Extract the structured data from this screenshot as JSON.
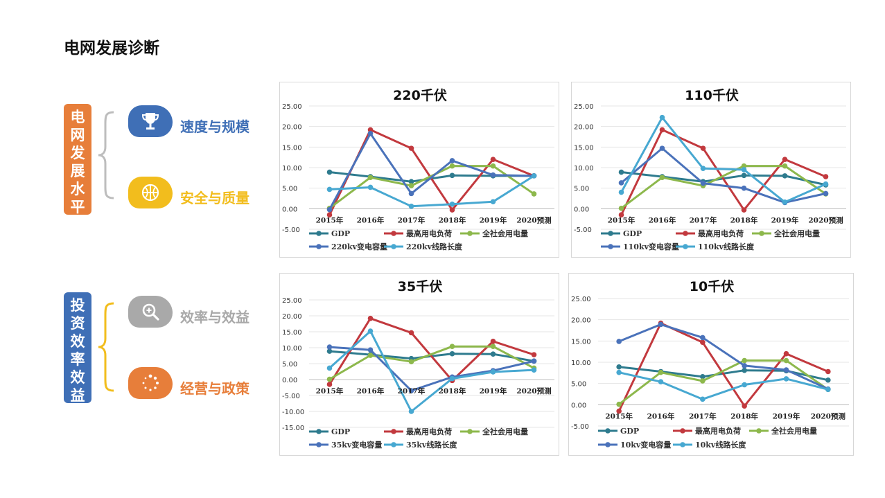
{
  "page": {
    "title": "电网发展诊断"
  },
  "sections": [
    {
      "label": "电网发展水平",
      "color": "#E77E3A",
      "items": [
        {
          "label": "速度与规模",
          "color": "#3F6FB6",
          "icon": "trophy-icon"
        },
        {
          "label": "安全与质量",
          "color": "#F2BD1D",
          "icon": "basketball-icon"
        }
      ]
    },
    {
      "label": "投资效率效益",
      "color": "#3F6FB6",
      "items": [
        {
          "label": "效率与效益",
          "color": "#A9A9A9",
          "icon": "magnifier-icon"
        },
        {
          "label": "经营与政策",
          "color": "#E77E3A",
          "icon": "loading-icon"
        }
      ]
    }
  ],
  "chart_data": [
    {
      "type": "line",
      "title": "220千伏",
      "categories": [
        "2015年",
        "2016年",
        "2017年",
        "2018年",
        "2019年",
        "2020预测"
      ],
      "ylim": [
        -5,
        25
      ],
      "yticks": [
        "25.00",
        "20.00",
        "15.00",
        "10.00",
        "5.00",
        "0.00",
        "-5.00"
      ],
      "series": [
        {
          "name": "GDP",
          "color": "#2E7B8E",
          "values": [
            8.9,
            7.8,
            6.6,
            8.1,
            8.0,
            8.0
          ]
        },
        {
          "name": "最高用电负荷",
          "color": "#C2393E",
          "values": [
            -1.5,
            19.2,
            14.7,
            -0.3,
            12.0,
            8.0
          ]
        },
        {
          "name": "全社会用电量",
          "color": "#8DB84C",
          "values": [
            0.1,
            7.6,
            5.6,
            10.4,
            10.4,
            3.6
          ]
        },
        {
          "name": "220kv变电容量",
          "color": "#4A72BA",
          "values": [
            -0.2,
            18.3,
            3.7,
            11.7,
            8.2,
            8.0
          ]
        },
        {
          "name": "220kv线路长度",
          "color": "#47A8D1",
          "values": [
            4.7,
            5.2,
            0.6,
            1.1,
            1.7,
            8.0
          ]
        }
      ]
    },
    {
      "type": "line",
      "title": "110千伏",
      "categories": [
        "2015年",
        "2016年",
        "2017年",
        "2018年",
        "2019年",
        "2020预测"
      ],
      "ylim": [
        -5,
        25
      ],
      "yticks": [
        "25.00",
        "20.00",
        "15.00",
        "10.00",
        "5.00",
        "0.00",
        "-5.00"
      ],
      "series": [
        {
          "name": "GDP",
          "color": "#2E7B8E",
          "values": [
            8.9,
            7.8,
            6.6,
            8.1,
            8.0,
            5.8
          ]
        },
        {
          "name": "最高用电负荷",
          "color": "#C2393E",
          "values": [
            -1.5,
            19.2,
            14.7,
            -0.3,
            12.0,
            7.8
          ]
        },
        {
          "name": "全社会用电量",
          "color": "#8DB84C",
          "values": [
            0.1,
            7.6,
            5.6,
            10.4,
            10.4,
            3.6
          ]
        },
        {
          "name": "110kv变电容量",
          "color": "#4A72BA",
          "values": [
            6.3,
            14.7,
            6.2,
            5.0,
            1.5,
            3.7
          ]
        },
        {
          "name": "110kv线路长度",
          "color": "#47A8D1",
          "values": [
            4.0,
            22.2,
            9.8,
            9.5,
            1.6,
            6.0
          ]
        }
      ]
    },
    {
      "type": "line",
      "title": "35千伏",
      "categories": [
        "2015年",
        "2016年",
        "2017年",
        "2018年",
        "2019年",
        "2020预测"
      ],
      "ylim": [
        -15,
        25
      ],
      "yticks": [
        "25.00",
        "20.00",
        "15.00",
        "10.00",
        "5.00",
        "0.00",
        "-5.00",
        "-10.00",
        "-15.00"
      ],
      "series": [
        {
          "name": "GDP",
          "color": "#2E7B8E",
          "values": [
            8.9,
            7.8,
            6.6,
            8.1,
            8.0,
            5.8
          ]
        },
        {
          "name": "最高用电负荷",
          "color": "#C2393E",
          "values": [
            -1.5,
            19.2,
            14.7,
            -0.3,
            12.0,
            7.8
          ]
        },
        {
          "name": "全社会用电量",
          "color": "#8DB84C",
          "values": [
            0.1,
            7.6,
            5.6,
            10.4,
            10.4,
            3.6
          ]
        },
        {
          "name": "35kv变电容量",
          "color": "#4A72BA",
          "values": [
            10.2,
            9.3,
            -3.5,
            0.8,
            2.8,
            5.8
          ]
        },
        {
          "name": "35kv线路长度",
          "color": "#47A8D1",
          "values": [
            3.6,
            15.2,
            -10.0,
            0.3,
            2.4,
            3.0
          ]
        }
      ]
    },
    {
      "type": "line",
      "title": "10千伏",
      "categories": [
        "2015年",
        "2016年",
        "2017年",
        "2018年",
        "2019年",
        "2020预测"
      ],
      "ylim": [
        -5,
        25
      ],
      "yticks": [
        "25.00",
        "20.00",
        "15.00",
        "10.00",
        "5.00",
        "0.00",
        "-5.00"
      ],
      "series": [
        {
          "name": "GDP",
          "color": "#2E7B8E",
          "values": [
            8.9,
            7.8,
            6.6,
            8.1,
            8.0,
            5.8
          ]
        },
        {
          "name": "最高用电负荷",
          "color": "#C2393E",
          "values": [
            -1.5,
            19.2,
            14.7,
            -0.3,
            12.0,
            7.8
          ]
        },
        {
          "name": "全社会用电量",
          "color": "#8DB84C",
          "values": [
            0.1,
            7.6,
            5.6,
            10.4,
            10.4,
            3.6
          ]
        },
        {
          "name": "10kv变电容量",
          "color": "#4A72BA",
          "values": [
            14.9,
            18.9,
            15.8,
            9.2,
            8.2,
            3.7
          ]
        },
        {
          "name": "10kv线路长度",
          "color": "#47A8D1",
          "values": [
            7.6,
            5.4,
            1.3,
            4.7,
            6.1,
            3.6
          ]
        }
      ]
    }
  ]
}
